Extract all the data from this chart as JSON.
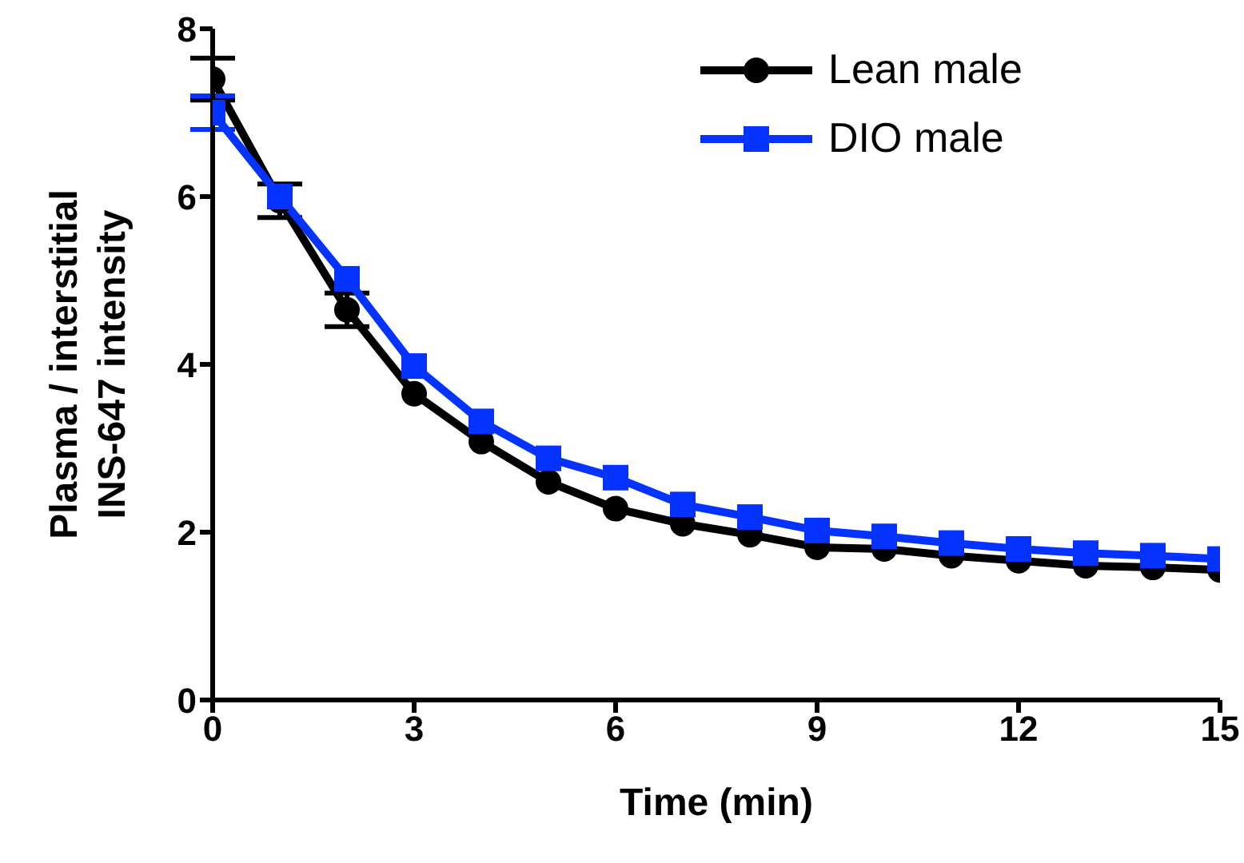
{
  "chart_data": {
    "type": "line",
    "xlabel": "Time (min)",
    "ylabel": "Plasma / interstitial\nINS-647 intensity",
    "x": [
      0,
      1,
      2,
      3,
      4,
      5,
      6,
      7,
      8,
      9,
      10,
      11,
      12,
      13,
      14,
      15
    ],
    "xlim": [
      0,
      15
    ],
    "xticks": [
      0,
      3,
      6,
      9,
      12,
      15
    ],
    "ylim": [
      0,
      8
    ],
    "yticks": [
      0,
      2,
      4,
      6,
      8
    ],
    "grid": false,
    "legend": "top right",
    "line_style": "solid",
    "series": [
      {
        "name": "Lean male",
        "color": "#000000",
        "marker": "circle",
        "values": [
          7.4,
          5.95,
          4.65,
          3.65,
          3.08,
          2.6,
          2.28,
          2.1,
          1.97,
          1.82,
          1.8,
          1.72,
          1.66,
          1.6,
          1.58,
          1.55
        ],
        "errors": [
          0.25,
          0.2,
          0.2,
          null,
          null,
          null,
          null,
          null,
          null,
          null,
          null,
          null,
          null,
          null,
          null,
          null
        ]
      },
      {
        "name": "DIO male",
        "color": "#0433ff",
        "marker": "square",
        "values": [
          7.0,
          6.0,
          5.02,
          3.98,
          3.32,
          2.88,
          2.65,
          2.33,
          2.18,
          2.02,
          1.95,
          1.87,
          1.8,
          1.75,
          1.72,
          1.68
        ],
        "errors": [
          0.2,
          null,
          null,
          null,
          null,
          null,
          null,
          null,
          null,
          null,
          null,
          null,
          null,
          null,
          null,
          null
        ]
      }
    ]
  }
}
